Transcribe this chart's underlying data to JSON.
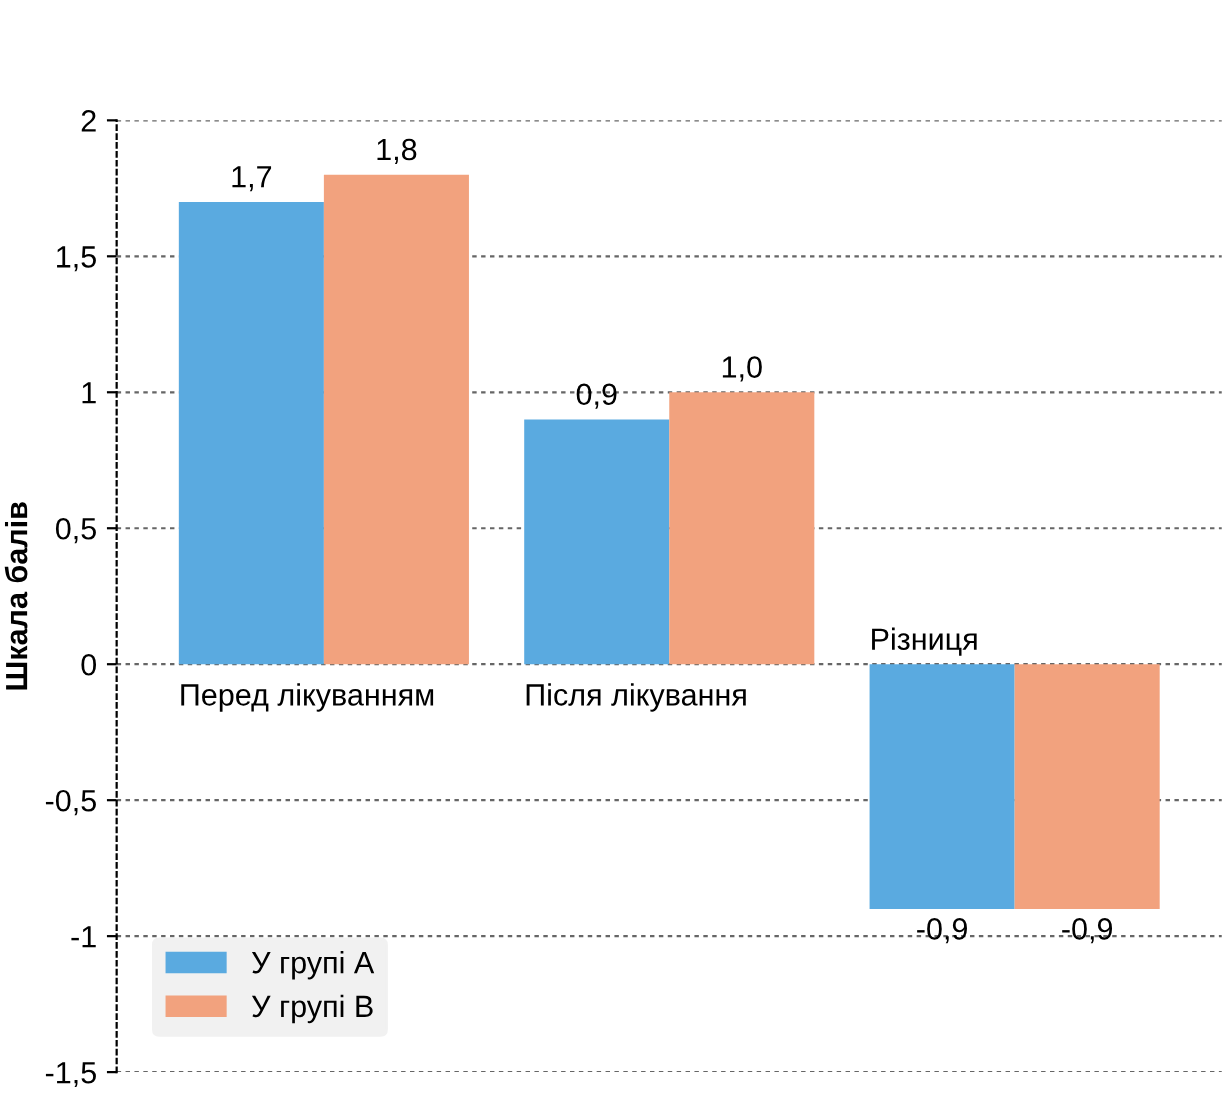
{
  "chart_data": {
    "type": "bar",
    "ylabel": "Шкала балів",
    "categories": [
      "Перед лікуванням",
      "Після лікування",
      "Різниця"
    ],
    "series": [
      {
        "name": "У групі А",
        "color": "#5aaae0",
        "values": [
          1.7,
          0.9,
          -0.9
        ],
        "value_labels": [
          "1,7",
          "0,9",
          "-0,9"
        ]
      },
      {
        "name": "У групі В",
        "color": "#f2a27e",
        "values": [
          1.8,
          1.0,
          -0.9
        ],
        "value_labels": [
          "1,8",
          "1,0",
          "-0,9"
        ]
      }
    ],
    "ylim": [
      -1.5,
      2
    ],
    "yticks": [
      {
        "value": -1.5,
        "label": "-1,5"
      },
      -1,
      {
        "value": -0.5,
        "label": "-0,5"
      },
      0,
      {
        "value": 0.5,
        "label": "0,5"
      },
      1,
      {
        "value": 1.5,
        "label": "1,5"
      },
      2
    ],
    "grid": "y",
    "legend": "bottom left"
  }
}
